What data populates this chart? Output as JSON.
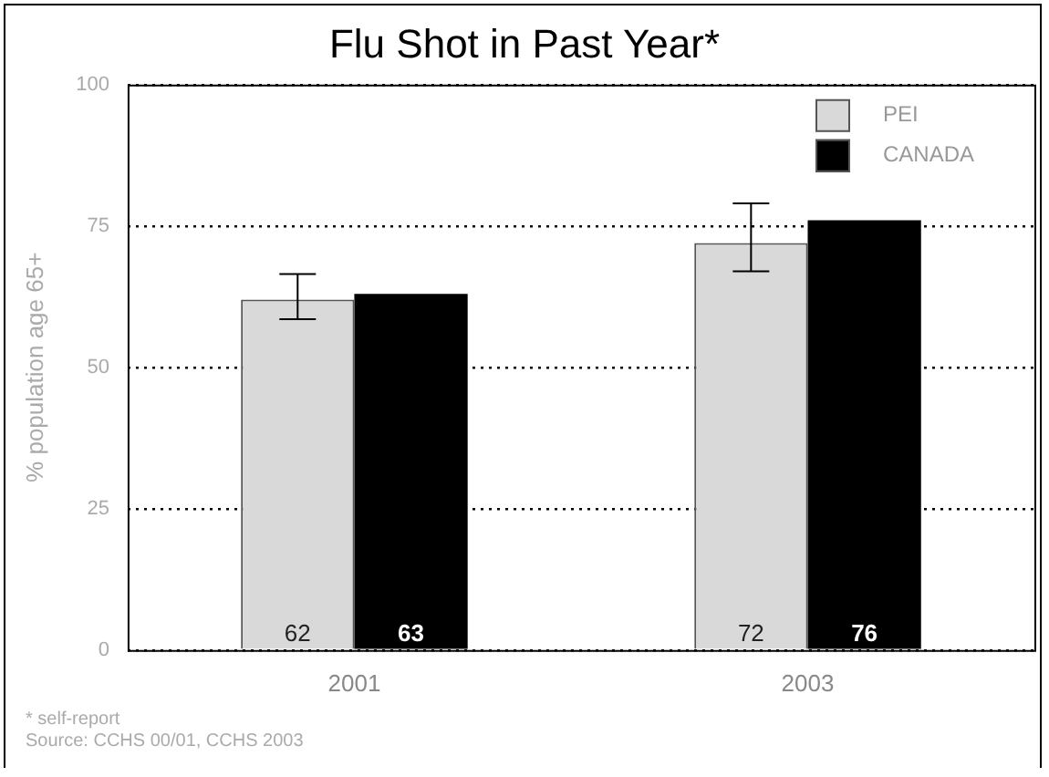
{
  "chart_data": {
    "type": "bar",
    "title": "Flu Shot in Past Year*",
    "ylabel": "% population age 65+",
    "categories": [
      "2001",
      "2003"
    ],
    "series": [
      {
        "name": "PEI",
        "color": "#d9d9d9",
        "values": [
          62,
          72
        ],
        "errors": [
          [
            58.5,
            66.5
          ],
          [
            67,
            79
          ]
        ]
      },
      {
        "name": "CANADA",
        "color": "#000000",
        "values": [
          63,
          76
        ]
      }
    ],
    "ylim": [
      0,
      100
    ],
    "yticks": [
      0,
      25,
      50,
      75,
      100
    ],
    "grid": "y",
    "legend": "top right",
    "data_labels": true,
    "annotations": [
      "* self-report",
      "Source: CCHS 00/01, CCHS 2003"
    ]
  }
}
